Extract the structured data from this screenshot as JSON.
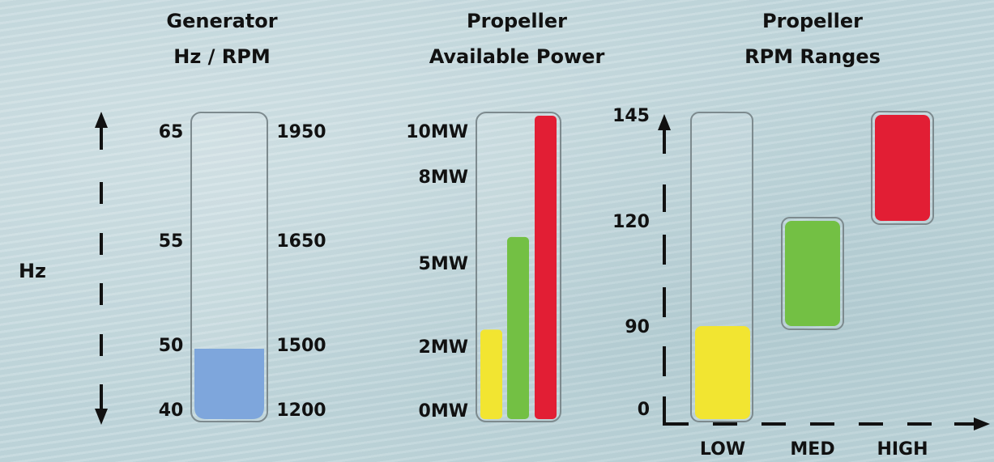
{
  "colors": {
    "blue": "#7ea6dc",
    "yellow": "#f2e531",
    "green": "#73c044",
    "red": "#e21e34",
    "tube_stroke": "#7d8a8e",
    "axis": "#111111"
  },
  "chart_data": [
    {
      "type": "bar",
      "title": "Generator",
      "subtitle": "Hz / RPM",
      "ylabel": "Hz",
      "left_ticks": [
        {
          "value": 40,
          "label": "40"
        },
        {
          "value": 50,
          "label": "50"
        },
        {
          "value": 55,
          "label": "55"
        },
        {
          "value": 65,
          "label": "65"
        }
      ],
      "right_ticks": [
        {
          "rpm": 1200,
          "label": "1200"
        },
        {
          "rpm": 1500,
          "label": "1500"
        },
        {
          "rpm": 1650,
          "label": "1650"
        },
        {
          "rpm": 1950,
          "label": "1950"
        }
      ],
      "fill_value_hz": 50,
      "fill_color": "#7ea6dc"
    },
    {
      "type": "bar",
      "title": "Propeller",
      "subtitle": "Available Power",
      "ticks": [
        {
          "value": 0,
          "label": "0MW"
        },
        {
          "value": 2,
          "label": "2MW"
        },
        {
          "value": 5,
          "label": "5MW"
        },
        {
          "value": 8,
          "label": "8MW"
        },
        {
          "value": 10,
          "label": "10MW"
        }
      ],
      "series": [
        {
          "value": 2.6,
          "color": "#f2e531"
        },
        {
          "value": 5.9,
          "color": "#73c044"
        },
        {
          "value": 10,
          "color": "#e21e34"
        }
      ]
    },
    {
      "type": "bar",
      "title": "Propeller",
      "subtitle": "RPM Ranges",
      "y_ticks": [
        {
          "value": 0,
          "label": "0"
        },
        {
          "value": 90,
          "label": "90"
        },
        {
          "value": 120,
          "label": "120"
        },
        {
          "value": 145,
          "label": "145"
        }
      ],
      "categories": [
        "LOW",
        "MED",
        "HIGH"
      ],
      "ranges": [
        {
          "category": "LOW",
          "low": 0,
          "high": 90,
          "color": "#f2e531"
        },
        {
          "category": "MED",
          "low": 90,
          "high": 120,
          "color": "#73c044"
        },
        {
          "category": "HIGH",
          "low": 120,
          "high": 145,
          "color": "#e21e34"
        }
      ]
    }
  ]
}
